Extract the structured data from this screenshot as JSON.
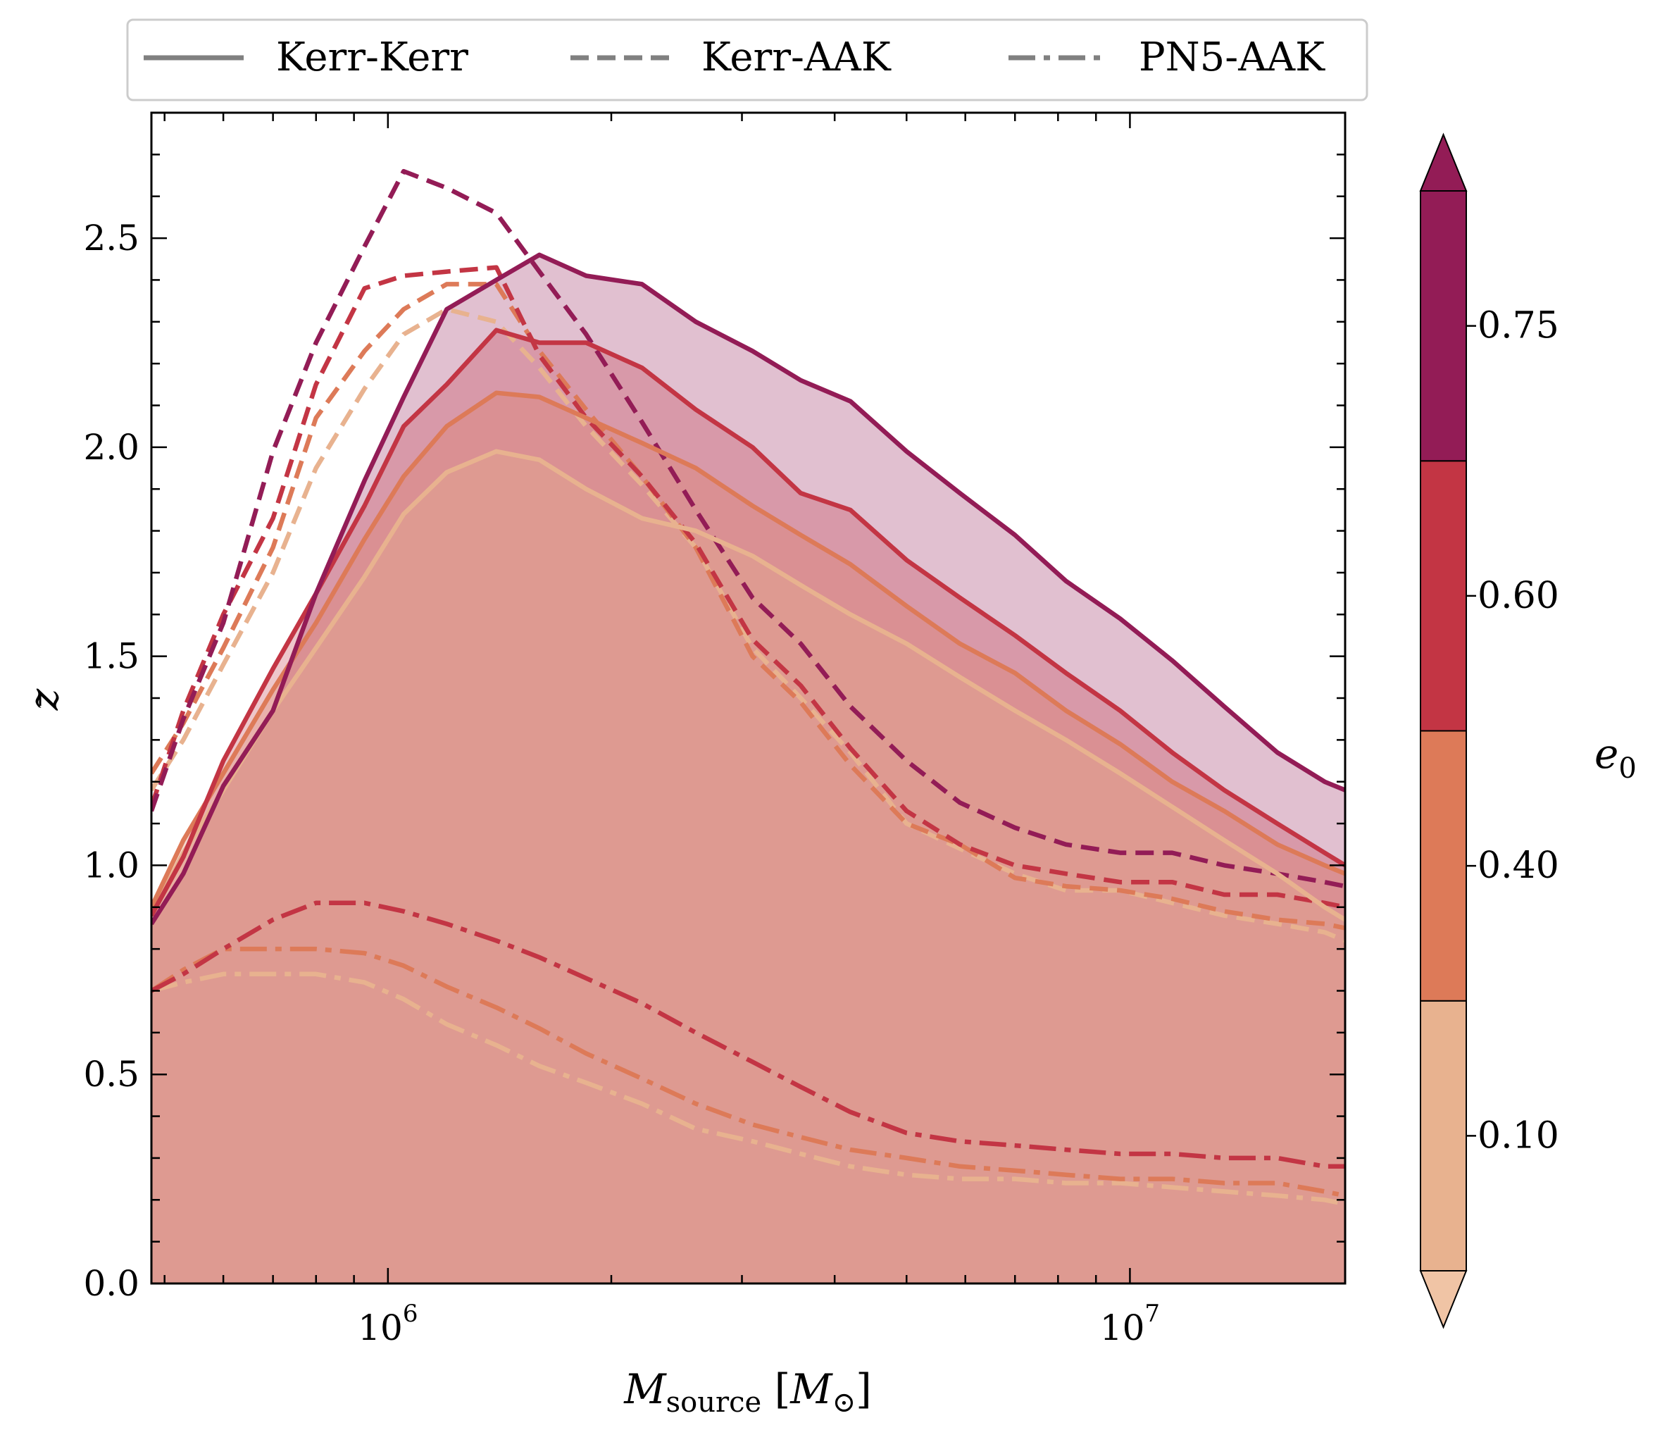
{
  "chart_data": {
    "type": "line",
    "title": "",
    "xlabel": "M_source [M_⊙]",
    "ylabel": "z̄",
    "xscale": "log",
    "xlim": [
      480000,
      19500000
    ],
    "ylim": [
      0,
      2.8
    ],
    "x_ticks": [
      {
        "value": 1000000,
        "base": "10",
        "exp": "6"
      },
      {
        "value": 10000000,
        "base": "10",
        "exp": "7"
      }
    ],
    "y_ticks": [
      "0.0",
      "0.5",
      "1.0",
      "1.5",
      "2.0",
      "2.5"
    ],
    "grid": false,
    "legend": {
      "placement": "top, outside axes",
      "entries": [
        {
          "label": "Kerr-Kerr",
          "style": "solid"
        },
        {
          "label": "Kerr-AAK",
          "style": "dashed"
        },
        {
          "label": "PN5-AAK",
          "style": "dashdot"
        }
      ]
    },
    "colorbar": {
      "label": "e",
      "label_subscript": "0",
      "tick_labels": [
        "0.10",
        "0.40",
        "0.60",
        "0.75"
      ],
      "levels": [
        {
          "e0": 0.1,
          "color": "#e8b28f"
        },
        {
          "e0": 0.4,
          "color": "#dd7a58"
        },
        {
          "e0": 0.6,
          "color": "#c33544"
        },
        {
          "e0": 0.75,
          "color": "#931c56"
        }
      ],
      "extend": "both"
    },
    "x": [
      480000,
      530000,
      600000,
      700000,
      800000,
      930000,
      1050000,
      1200000,
      1400000,
      1600000,
      1850000,
      2200000,
      2600000,
      3100000,
      3600000,
      4200000,
      5000000,
      5900000,
      7000000,
      8200000,
      9700000,
      11400000,
      13400000,
      15800000,
      18300000,
      19500000
    ],
    "series": [
      {
        "name": "Kerr-Kerr",
        "e0": 0.1,
        "style": "solid",
        "fill": true,
        "values": [
          0.88,
          1.03,
          1.18,
          1.37,
          1.52,
          1.69,
          1.84,
          1.94,
          1.99,
          1.97,
          1.9,
          1.83,
          1.8,
          1.74,
          1.67,
          1.6,
          1.53,
          1.45,
          1.37,
          1.3,
          1.22,
          1.14,
          1.06,
          0.98,
          0.9,
          0.87
        ]
      },
      {
        "name": "Kerr-Kerr",
        "e0": 0.4,
        "style": "solid",
        "fill": true,
        "values": [
          0.9,
          1.06,
          1.22,
          1.42,
          1.58,
          1.78,
          1.93,
          2.05,
          2.13,
          2.12,
          2.07,
          2.01,
          1.95,
          1.86,
          1.79,
          1.72,
          1.62,
          1.53,
          1.46,
          1.37,
          1.29,
          1.2,
          1.13,
          1.05,
          1.0,
          0.98
        ]
      },
      {
        "name": "Kerr-Kerr",
        "e0": 0.6,
        "style": "solid",
        "fill": true,
        "values": [
          0.88,
          1.02,
          1.25,
          1.47,
          1.65,
          1.86,
          2.05,
          2.15,
          2.28,
          2.25,
          2.25,
          2.19,
          2.09,
          2.0,
          1.89,
          1.85,
          1.73,
          1.64,
          1.55,
          1.46,
          1.37,
          1.27,
          1.18,
          1.1,
          1.03,
          1.0
        ]
      },
      {
        "name": "Kerr-Kerr",
        "e0": 0.75,
        "style": "solid",
        "fill": true,
        "values": [
          0.86,
          0.98,
          1.19,
          1.37,
          1.65,
          1.92,
          2.12,
          2.33,
          2.4,
          2.46,
          2.41,
          2.39,
          2.3,
          2.23,
          2.16,
          2.11,
          1.99,
          1.89,
          1.79,
          1.68,
          1.59,
          1.49,
          1.38,
          1.27,
          1.2,
          1.18
        ]
      },
      {
        "name": "Kerr-AAK",
        "e0": 0.1,
        "style": "dashed",
        "values": [
          1.18,
          1.3,
          1.48,
          1.7,
          1.95,
          2.14,
          2.27,
          2.33,
          2.3,
          2.19,
          2.05,
          1.91,
          1.76,
          1.52,
          1.4,
          1.27,
          1.1,
          1.04,
          0.98,
          0.94,
          0.94,
          0.91,
          0.88,
          0.86,
          0.84,
          0.82
        ]
      },
      {
        "name": "Kerr-AAK",
        "e0": 0.4,
        "style": "dashed",
        "values": [
          1.22,
          1.34,
          1.52,
          1.76,
          2.07,
          2.23,
          2.33,
          2.39,
          2.39,
          2.23,
          2.09,
          1.93,
          1.76,
          1.5,
          1.39,
          1.24,
          1.1,
          1.05,
          0.97,
          0.95,
          0.94,
          0.92,
          0.89,
          0.87,
          0.86,
          0.85
        ]
      },
      {
        "name": "Kerr-AAK",
        "e0": 0.6,
        "style": "dashed",
        "values": [
          1.14,
          1.37,
          1.6,
          1.83,
          2.15,
          2.38,
          2.41,
          2.42,
          2.43,
          2.22,
          2.07,
          1.93,
          1.77,
          1.54,
          1.43,
          1.28,
          1.13,
          1.05,
          1.0,
          0.98,
          0.96,
          0.96,
          0.93,
          0.93,
          0.91,
          0.9
        ]
      },
      {
        "name": "Kerr-AAK",
        "e0": 0.75,
        "style": "dashed",
        "values": [
          1.13,
          1.35,
          1.58,
          1.99,
          2.25,
          2.48,
          2.66,
          2.62,
          2.56,
          2.42,
          2.27,
          2.06,
          1.85,
          1.64,
          1.53,
          1.38,
          1.25,
          1.15,
          1.09,
          1.05,
          1.03,
          1.03,
          1.0,
          0.98,
          0.96,
          0.95
        ]
      },
      {
        "name": "PN5-AAK",
        "e0": 0.1,
        "style": "dashdot",
        "values": [
          0.7,
          0.72,
          0.74,
          0.74,
          0.74,
          0.72,
          0.68,
          0.62,
          0.57,
          0.52,
          0.48,
          0.43,
          0.37,
          0.34,
          0.31,
          0.28,
          0.26,
          0.25,
          0.25,
          0.24,
          0.24,
          0.23,
          0.22,
          0.21,
          0.2,
          0.19
        ]
      },
      {
        "name": "PN5-AAK",
        "e0": 0.4,
        "style": "dashdot",
        "values": [
          0.7,
          0.75,
          0.8,
          0.8,
          0.8,
          0.79,
          0.76,
          0.71,
          0.66,
          0.61,
          0.55,
          0.49,
          0.43,
          0.38,
          0.35,
          0.32,
          0.3,
          0.28,
          0.27,
          0.26,
          0.25,
          0.25,
          0.24,
          0.24,
          0.22,
          0.21
        ]
      },
      {
        "name": "PN5-AAK",
        "e0": 0.6,
        "style": "dashdot",
        "values": [
          0.7,
          0.74,
          0.8,
          0.87,
          0.91,
          0.91,
          0.89,
          0.86,
          0.82,
          0.78,
          0.73,
          0.67,
          0.6,
          0.53,
          0.47,
          0.41,
          0.36,
          0.34,
          0.33,
          0.32,
          0.31,
          0.31,
          0.3,
          0.3,
          0.28,
          0.28
        ]
      }
    ]
  }
}
